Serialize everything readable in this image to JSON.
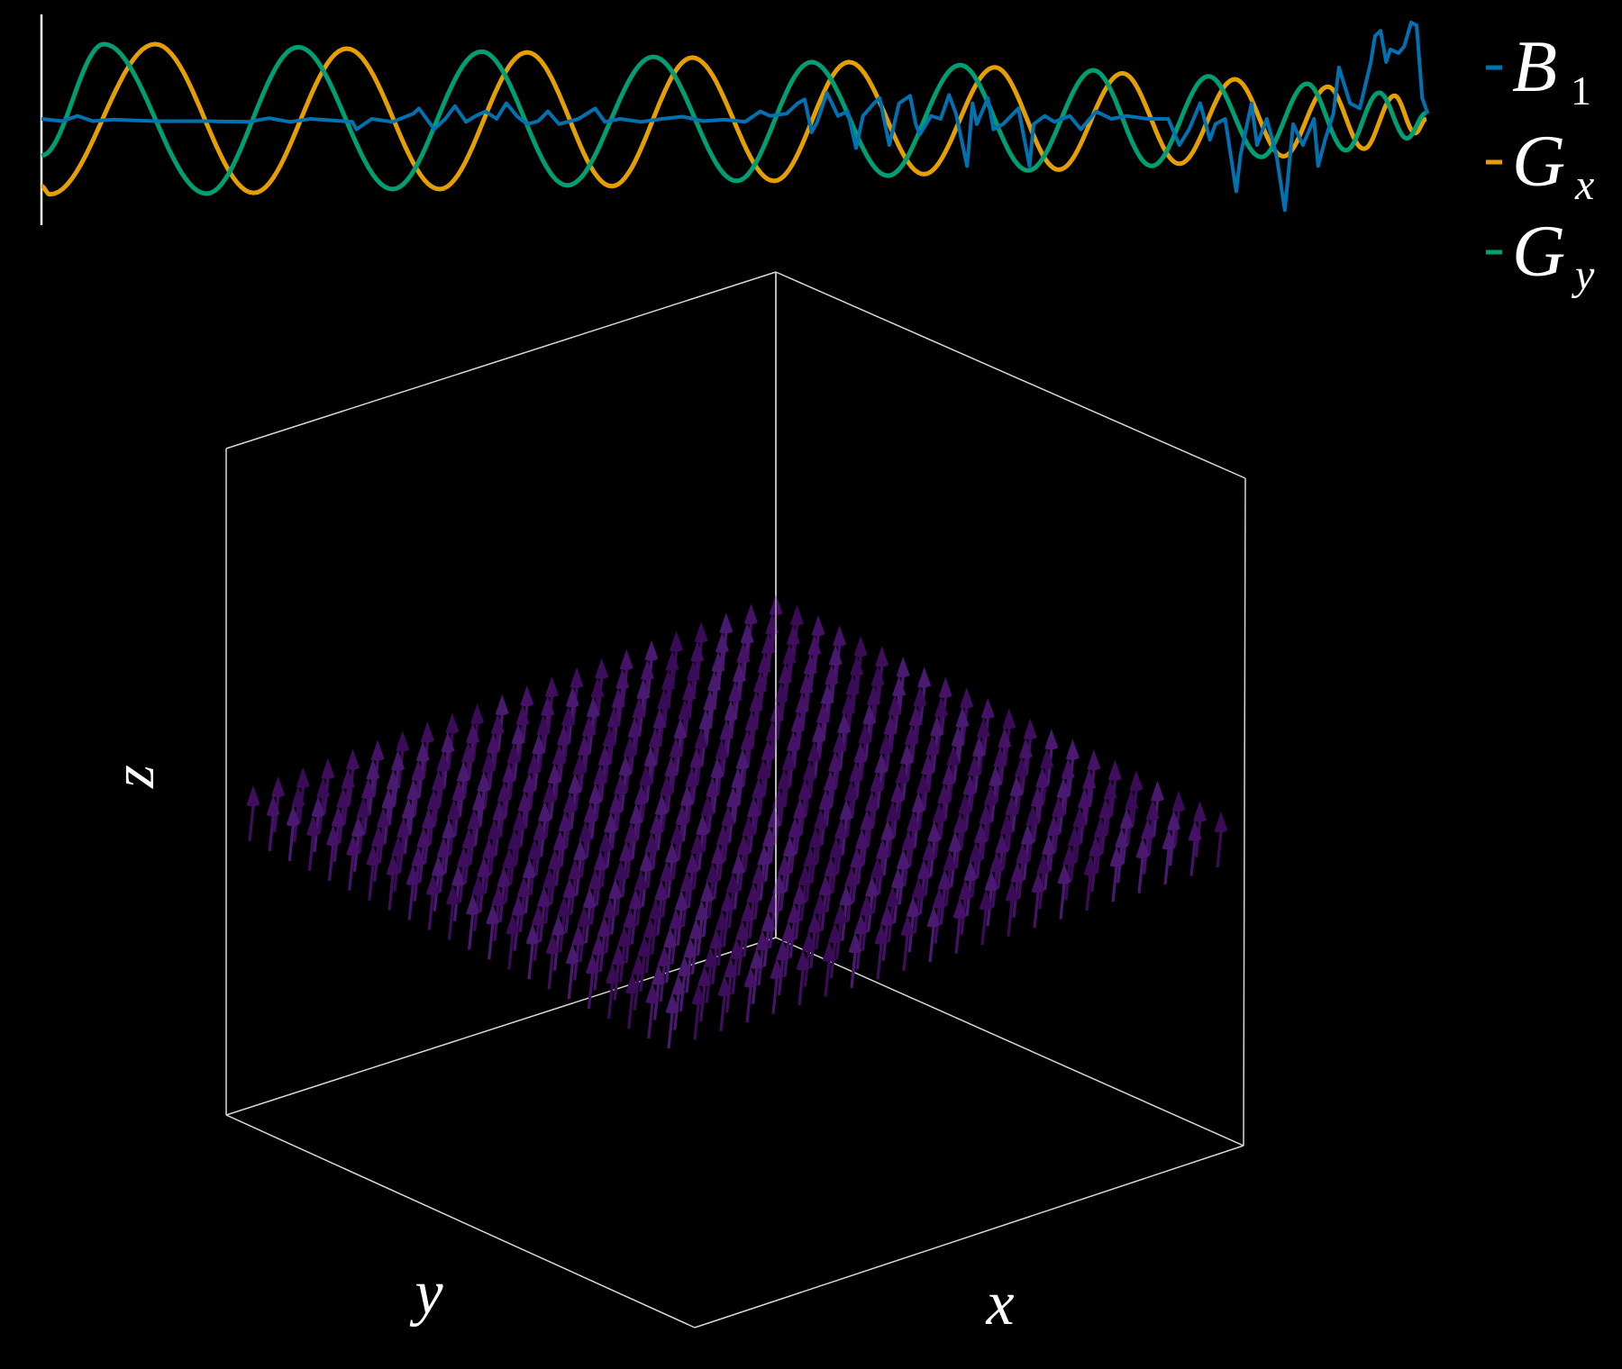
{
  "chart_data": [
    {
      "type": "line",
      "title": "",
      "xlabel": "",
      "ylabel": "",
      "xlim": [
        0,
        100
      ],
      "ylim": [
        -1.42,
        1.4
      ],
      "grid": false,
      "legend_placement": "right",
      "series": [
        {
          "name": "B1",
          "legend_main": "B",
          "legend_sub": "1",
          "color": "#0072b2",
          "interpolation": "linear",
          "x": [
            0,
            1.5,
            2.6,
            3.7,
            5.2,
            8.2,
            11.9,
            14.9,
            16.4,
            17.9,
            19.4,
            22.4,
            22.7,
            23.8,
            25.3,
            26.8,
            27.2,
            27.6,
            28.3,
            29.1,
            29.8,
            30.6,
            31.3,
            32.0,
            32.8,
            33.5,
            34.3,
            35.0,
            35.8,
            36.5,
            37.3,
            38.7,
            39.9,
            40.6,
            41.7,
            43.2,
            44.7,
            46.2,
            47.7,
            49.2,
            50.7,
            51.8,
            52.5,
            53.7,
            54.5,
            55.0,
            55.5,
            55.9,
            56.6,
            57.4,
            58.1,
            58.7,
            59.2,
            60.0,
            60.4,
            61.1,
            61.8,
            62.6,
            63.0,
            63.3,
            64.1,
            64.8,
            65.4,
            65.9,
            66.7,
            67.1,
            67.4,
            68.2,
            68.6,
            69.3,
            70.4,
            71.2,
            71.5,
            72.3,
            73.0,
            74.1,
            74.9,
            76.0,
            77.1,
            78.2,
            79.7,
            81.2,
            82.0,
            82.7,
            83.5,
            84.2,
            84.6,
            85.3,
            86.1,
            86.4,
            87.2,
            87.6,
            88.3,
            89.0,
            89.6,
            90.2,
            90.9,
            91.7,
            92.0,
            92.5,
            93.1,
            93.5,
            94.3,
            95.0,
            95.8,
            96.1,
            96.5,
            96.9,
            97.2,
            97.8,
            98.2,
            98.7,
            99.1,
            99.5,
            99.9
          ],
          "y": [
            0,
            -0.03,
            0.04,
            -0.03,
            -0.01,
            -0.03,
            -0.03,
            -0.04,
            0.01,
            -0.04,
            0,
            -0.04,
            -0.14,
            0,
            -0.04,
            0.07,
            0.14,
            0.04,
            -0.14,
            0,
            0.17,
            -0.04,
            0.04,
            0.1,
            0,
            0.21,
            0.03,
            -0.07,
            -0.03,
            0.1,
            -0.07,
            0,
            0.14,
            -0.04,
            0,
            -0.04,
            0,
            0.03,
            -0.03,
            -0.01,
            -0.04,
            0.1,
            0.04,
            0.07,
            0.21,
            0.26,
            -0.18,
            -0.04,
            0.35,
            0.04,
            0.1,
            -0.39,
            0.04,
            0.21,
            0.28,
            -0.35,
            0.21,
            0.31,
            -0.07,
            -0.21,
            0.04,
            0,
            0.32,
            0.07,
            -0.63,
            0.21,
            -0.07,
            0.28,
            -0.14,
            -0.07,
            0.14,
            -0.63,
            -0.07,
            0.04,
            -0.04,
            0.04,
            -0.14,
            0.1,
            0,
            0.04,
            0,
            0,
            -0.35,
            -0.14,
            0.21,
            -0.28,
            -0.07,
            0,
            -0.97,
            -0.49,
            0.21,
            -0.35,
            0,
            -0.49,
            -1.22,
            -0.07,
            -0.35,
            0,
            -0.63,
            -0.28,
            0.07,
            0.69,
            0.21,
            0.14,
            0.76,
            1.11,
            1.18,
            0.76,
            0.93,
            0.88,
            0.97,
            1.29,
            1.25,
            0.28,
            0.07
          ]
        },
        {
          "name": "Gx",
          "legend_main": "G",
          "legend_sub": "x",
          "color": "#e69f00",
          "interpolation": "smooth-extrema",
          "x": [
            0,
            0.6,
            8.2,
            15.3,
            22.0,
            28.7,
            35.0,
            41.1,
            46.9,
            52.8,
            58.2,
            63.6,
            68.7,
            73.3,
            77.9,
            82.0,
            86.0,
            89.5,
            92.7,
            95.3,
            97.5,
            99.0,
            99.8
          ],
          "y": [
            -0.9,
            -1.01,
            1.0,
            -0.99,
            0.94,
            -0.94,
            0.89,
            -0.9,
            0.82,
            -0.83,
            0.76,
            -0.74,
            0.69,
            -0.68,
            0.61,
            -0.6,
            0.53,
            -0.5,
            0.43,
            -0.4,
            0.31,
            -0.19,
            0
          ]
        },
        {
          "name": "Gy",
          "legend_main": "G",
          "legend_sub": "y",
          "color": "#009e73",
          "interpolation": "smooth-extrema",
          "x": [
            0,
            4.5,
            11.9,
            18.5,
            25.3,
            31.7,
            37.9,
            44.1,
            50.1,
            55.5,
            61.0,
            66.2,
            71.1,
            75.8,
            80.0,
            84.1,
            87.9,
            91.2,
            94.0,
            96.4,
            98.4,
            99.8
          ],
          "y": [
            -0.49,
            1.0,
            -1.0,
            0.96,
            -0.94,
            0.9,
            -0.89,
            0.83,
            -0.83,
            0.76,
            -0.76,
            0.72,
            -0.69,
            0.65,
            -0.63,
            0.57,
            -0.51,
            0.47,
            -0.42,
            0.35,
            -0.26,
            0.08
          ]
        }
      ]
    },
    {
      "type": "quiver3d",
      "title": "",
      "xlabel": "x",
      "ylabel": "y",
      "zlabel": "z",
      "grid": false,
      "arrow_grid": [
        22,
        22
      ],
      "arrow_direction": "+z",
      "arrow_plane_z": 0,
      "arrow_color": "#3f0f5e",
      "box_color": "#d9d9d9"
    }
  ]
}
